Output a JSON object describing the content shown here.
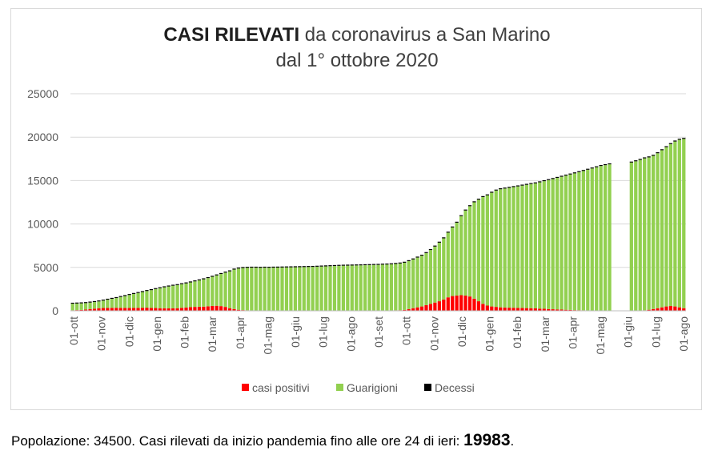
{
  "chart_data": {
    "type": "bar",
    "stacked": true,
    "title_bold": "CASI RILEVATI",
    "title_rest": "da coronavirus a San Marino",
    "subtitle": "dal 1° ottobre 2020",
    "ylim": [
      0,
      25000
    ],
    "yticks": [
      "0",
      "5000",
      "10000",
      "15000",
      "20000",
      "25000"
    ],
    "xticks": [
      "01-ott",
      "01-nov",
      "01-dic",
      "01-gen",
      "01-feb",
      "01-mar",
      "01-apr",
      "01-mag",
      "01-giu",
      "01-lug",
      "01-ago",
      "01-set",
      "01-ott",
      "01-nov",
      "01-dic",
      "01-gen",
      "01-feb",
      "01-mar",
      "01-apr",
      "01-mag",
      "01-giu",
      "01-lug",
      "01-ago"
    ],
    "legend_position": "bottom",
    "grid": "horizontal",
    "series": [
      {
        "name": "casi positivi",
        "color": "#ff0000",
        "values": [
          60,
          80,
          100,
          150,
          200,
          250,
          300,
          320,
          330,
          340,
          350,
          340,
          330,
          330,
          330,
          340,
          350,
          360,
          330,
          320,
          300,
          290,
          280,
          280,
          300,
          340,
          380,
          420,
          450,
          470,
          480,
          520,
          560,
          580,
          540,
          450,
          300,
          200,
          120,
          80,
          60,
          50,
          40,
          30,
          30,
          25,
          25,
          20,
          20,
          20,
          20,
          20,
          20,
          20,
          20,
          20,
          20,
          20,
          20,
          20,
          20,
          20,
          25,
          25,
          25,
          25,
          25,
          25,
          25,
          30,
          30,
          35,
          40,
          50,
          60,
          70,
          100,
          200,
          300,
          400,
          500,
          650,
          800,
          950,
          1100,
          1300,
          1550,
          1700,
          1750,
          1800,
          1750,
          1650,
          1400,
          1100,
          800,
          600,
          500,
          450,
          400,
          380,
          360,
          350,
          330,
          320,
          310,
          300,
          280,
          250,
          230,
          200,
          180,
          160,
          140,
          120,
          100,
          80,
          70,
          60,
          50,
          40,
          35,
          30,
          25,
          20,
          0,
          0,
          0,
          0,
          25,
          20,
          30,
          60,
          120,
          200,
          300,
          400,
          500,
          550,
          500,
          400,
          300
        ]
      },
      {
        "name": "Guarigioni",
        "color": "#92d050",
        "values": [
          760,
          760,
          760,
          740,
          750,
          760,
          780,
          860,
          950,
          1040,
          1120,
          1250,
          1370,
          1490,
          1610,
          1710,
          1810,
          1920,
          2050,
          2180,
          2310,
          2420,
          2520,
          2610,
          2660,
          2730,
          2780,
          2850,
          2940,
          3040,
          3150,
          3250,
          3360,
          3500,
          3700,
          3950,
          4250,
          4550,
          4750,
          4850,
          4900,
          4920,
          4930,
          4930,
          4940,
          4940,
          4950,
          4960,
          4970,
          4980,
          4990,
          5000,
          5010,
          5020,
          5030,
          5040,
          5060,
          5080,
          5100,
          5120,
          5140,
          5160,
          5170,
          5180,
          5190,
          5200,
          5210,
          5230,
          5240,
          5250,
          5260,
          5280,
          5290,
          5310,
          5340,
          5380,
          5440,
          5520,
          5620,
          5730,
          5850,
          6000,
          6200,
          6450,
          6750,
          7050,
          7450,
          7900,
          8400,
          9100,
          9800,
          10400,
          11100,
          11700,
          12300,
          12700,
          13100,
          13400,
          13600,
          13700,
          13800,
          13900,
          14000,
          14100,
          14200,
          14300,
          14400,
          14550,
          14700,
          14850,
          15000,
          15150,
          15300,
          15450,
          15600,
          15750,
          15900,
          16050,
          16200,
          16350,
          16500,
          16650,
          16750,
          16850,
          0,
          0,
          0,
          0,
          17050,
          17200,
          17350,
          17500,
          17550,
          17650,
          17850,
          18100,
          18350,
          18650,
          19000,
          19300,
          19500,
          19650
        ]
      },
      {
        "name": "Decessi",
        "color": "#000000",
        "values": [
          40,
          40,
          40,
          40,
          40,
          40,
          40,
          40,
          40,
          40,
          40,
          40,
          40,
          40,
          40,
          40,
          45,
          45,
          45,
          45,
          45,
          50,
          50,
          50,
          50,
          50,
          55,
          55,
          55,
          55,
          60,
          60,
          60,
          60,
          60,
          60,
          65,
          65,
          65,
          65,
          65,
          65,
          65,
          65,
          65,
          65,
          65,
          65,
          65,
          65,
          65,
          65,
          65,
          65,
          65,
          65,
          65,
          65,
          65,
          65,
          65,
          65,
          65,
          65,
          65,
          65,
          65,
          65,
          65,
          65,
          65,
          65,
          65,
          65,
          65,
          65,
          65,
          65,
          65,
          65,
          65,
          70,
          70,
          70,
          70,
          75,
          75,
          80,
          80,
          80,
          80,
          85,
          85,
          85,
          85,
          85,
          85,
          85,
          85,
          85,
          85,
          85,
          85,
          85,
          85,
          85,
          85,
          85,
          85,
          85,
          85,
          85,
          85,
          85,
          85,
          85,
          85,
          85,
          85,
          85,
          85,
          85,
          85,
          85,
          0,
          0,
          0,
          0,
          85,
          85,
          85,
          85,
          85,
          85,
          85,
          85,
          85,
          85,
          85,
          85,
          85,
          85
        ]
      }
    ]
  },
  "caption": {
    "text": "Popolazione: 34500. Casi rilevati da inizio pandemia fino alle ore 24 di ieri:",
    "total": "19983",
    "end": "."
  }
}
